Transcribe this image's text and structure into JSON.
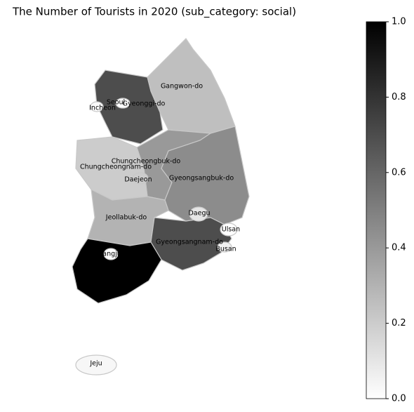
{
  "chart_data": {
    "type": "choropleth",
    "title": "The Number of Tourists in 2020 (sub_category: social)",
    "categories": [
      "Gangwon-do",
      "Gyeonggi-do",
      "Chungcheongbuk-do",
      "Chungcheongnam-do",
      "Gyeongsangbuk-do",
      "Jeollabuk-do",
      "Gyeongsangnam-do",
      null,
      "Seoul",
      "Incheon",
      "Daejeon",
      "Daegu",
      "Ulsan",
      "Busan",
      "Gwangju",
      "Jeju"
    ],
    "values": [
      0.25,
      0.7,
      0.4,
      0.2,
      0.45,
      0.3,
      0.7,
      1.0,
      0.0,
      0.02,
      0.2,
      0.1,
      0.0,
      0.05,
      0.0,
      0.03
    ],
    "colormap": "gray_r",
    "clim": [
      0,
      1
    ],
    "cticks": [
      {
        "value": 0,
        "label": "0.0"
      },
      {
        "value": 0.2,
        "label": "0.2"
      },
      {
        "value": 0.4,
        "label": "0.4"
      },
      {
        "value": 0.6,
        "label": "0.6"
      },
      {
        "value": 0.8,
        "label": "0.8"
      },
      {
        "value": 1,
        "label": "1.0"
      }
    ]
  }
}
